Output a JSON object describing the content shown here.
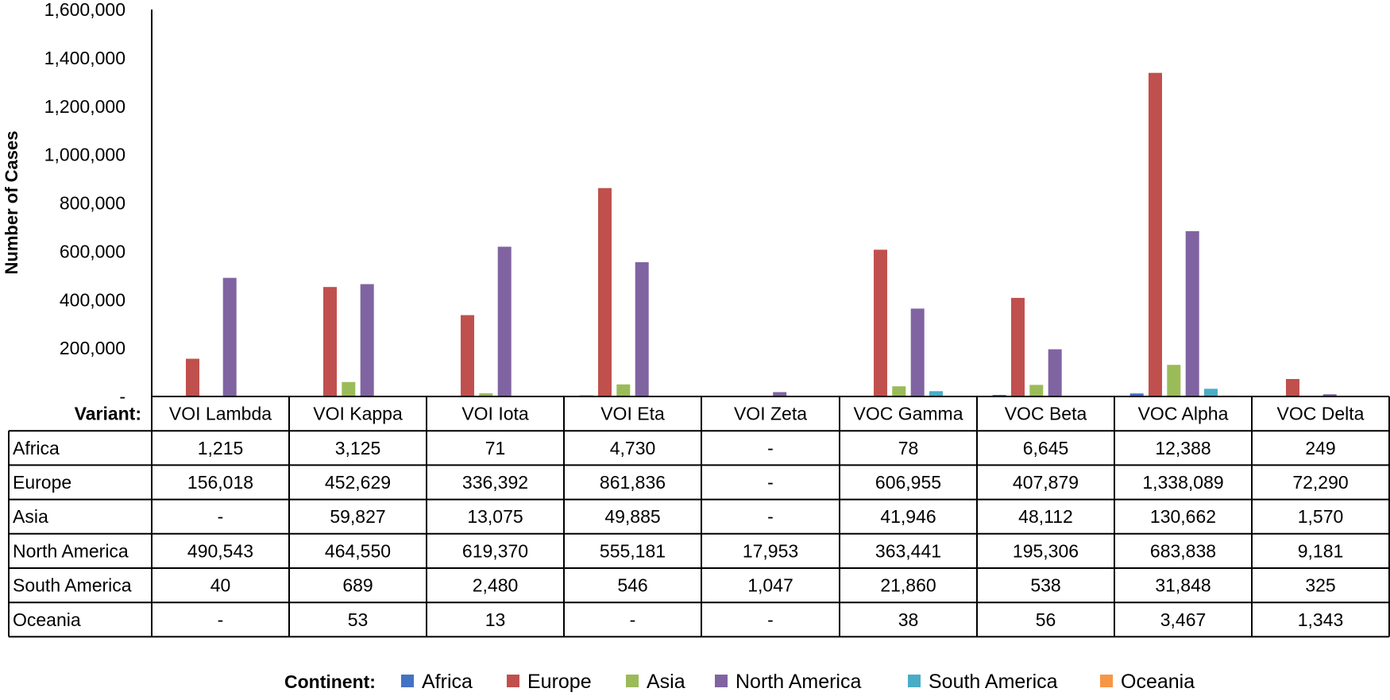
{
  "chart_data": {
    "type": "bar",
    "ylabel": "Number of Cases",
    "ylim": [
      0,
      1600000
    ],
    "yticks": [
      0,
      200000,
      400000,
      600000,
      800000,
      1000000,
      1200000,
      1400000,
      1600000
    ],
    "ytick_labels": [
      "-",
      "200,000",
      "400,000",
      "600,000",
      "800,000",
      "1,000,000",
      "1,200,000",
      "1,400,000",
      "1,600,000"
    ],
    "table_header_label": "Variant:",
    "categories": [
      "VOI Lambda",
      "VOI Kappa",
      "VOI Iota",
      "VOI Eta",
      "VOI Zeta",
      "VOC Gamma",
      "VOC Beta",
      "VOC Alpha",
      "VOC Delta"
    ],
    "series": [
      {
        "name": "Africa",
        "color": "#4472C4",
        "values": [
          1215,
          3125,
          71,
          4730,
          0,
          78,
          6645,
          12388,
          249
        ],
        "labels": [
          "1,215",
          "3,125",
          "71",
          "4,730",
          "-",
          "78",
          "6,645",
          "12,388",
          "249"
        ]
      },
      {
        "name": "Europe",
        "color": "#C0504D",
        "values": [
          156018,
          452629,
          336392,
          861836,
          0,
          606955,
          407879,
          1338089,
          72290
        ],
        "labels": [
          "156,018",
          "452,629",
          "336,392",
          "861,836",
          "-",
          "606,955",
          "407,879",
          "1,338,089",
          "72,290"
        ]
      },
      {
        "name": "Asia",
        "color": "#9BBB59",
        "values": [
          0,
          59827,
          13075,
          49885,
          0,
          41946,
          48112,
          130662,
          1570
        ],
        "labels": [
          "-",
          "59,827",
          "13,075",
          "49,885",
          "-",
          "41,946",
          "48,112",
          "130,662",
          "1,570"
        ]
      },
      {
        "name": "North America",
        "color": "#8064A2",
        "values": [
          490543,
          464550,
          619370,
          555181,
          17953,
          363441,
          195306,
          683838,
          9181
        ],
        "labels": [
          "490,543",
          "464,550",
          "619,370",
          "555,181",
          "17,953",
          "363,441",
          "195,306",
          "683,838",
          "9,181"
        ]
      },
      {
        "name": "South America",
        "color": "#4BACC6",
        "values": [
          40,
          689,
          2480,
          546,
          1047,
          21860,
          538,
          31848,
          325
        ],
        "labels": [
          "40",
          "689",
          "2,480",
          "546",
          "1,047",
          "21,860",
          "538",
          "31,848",
          "325"
        ]
      },
      {
        "name": "Oceania",
        "color": "#F79646",
        "values": [
          0,
          53,
          13,
          0,
          0,
          38,
          56,
          3467,
          1343
        ],
        "labels": [
          "-",
          "53",
          "13",
          "-",
          "-",
          "38",
          "56",
          "3,467",
          "1,343"
        ]
      }
    ],
    "legend_title": "Continent:",
    "legend_position": "bottom",
    "grid": false
  }
}
